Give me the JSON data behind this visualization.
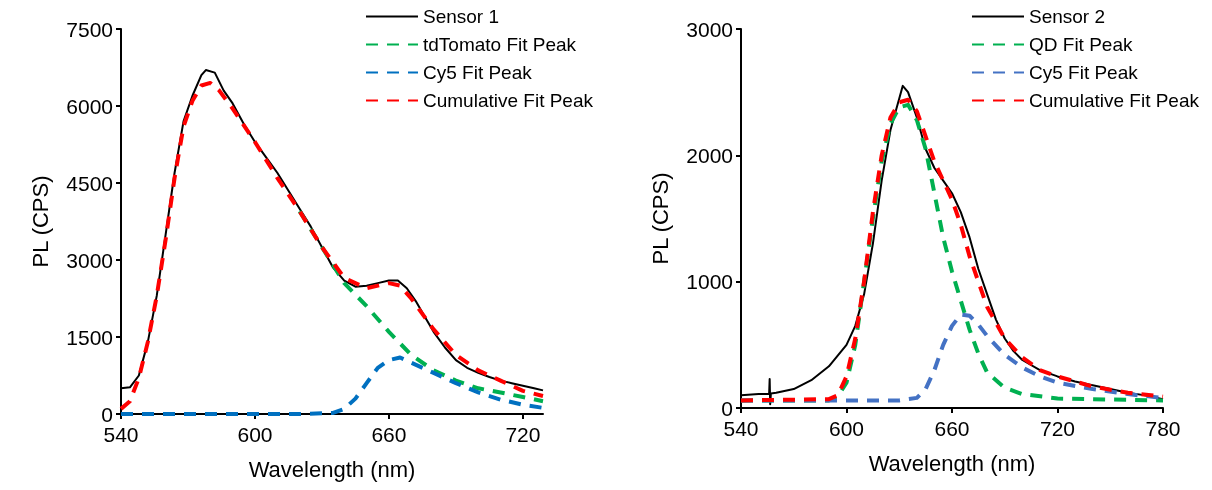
{
  "chart_data": [
    {
      "type": "line",
      "xlabel": "Wavelength (nm)",
      "ylabel": "PL (CPS)",
      "xlim": [
        540,
        729
      ],
      "xticks": [
        540,
        600,
        660,
        720
      ],
      "ylim": [
        0,
        7500
      ],
      "yticks": [
        0,
        1500,
        3000,
        4500,
        6000,
        7500
      ],
      "grid": false,
      "legend": "top right",
      "marker": "none",
      "series": [
        {
          "name": "Sensor 1",
          "color": "#000000",
          "line_style": "solid",
          "x": [
            540,
            544,
            548,
            552,
            556,
            560,
            564,
            568,
            572,
            576,
            578,
            582,
            586,
            590,
            595,
            600,
            605,
            610,
            615,
            620,
            625,
            630,
            635,
            640,
            645,
            650,
            655,
            660,
            664,
            668,
            672,
            676,
            680,
            685,
            690,
            695,
            700,
            705,
            710,
            715,
            720,
            725,
            729
          ],
          "values": [
            500,
            520,
            750,
            1400,
            2300,
            3500,
            4700,
            5700,
            6200,
            6600,
            6700,
            6650,
            6300,
            6050,
            5650,
            5300,
            5000,
            4700,
            4350,
            4000,
            3650,
            3250,
            2850,
            2600,
            2480,
            2500,
            2550,
            2600,
            2600,
            2450,
            2200,
            1900,
            1600,
            1300,
            1050,
            900,
            800,
            720,
            650,
            600,
            550,
            500,
            460
          ]
        },
        {
          "name": "tdTomato Fit Peak",
          "color": "#00b050",
          "line_style": "dashed",
          "x": [
            620,
            630,
            640,
            650,
            660,
            670,
            680,
            690,
            700,
            710,
            720,
            729
          ],
          "values": [
            3950,
            3250,
            2550,
            2100,
            1600,
            1150,
            850,
            650,
            500,
            420,
            330,
            250
          ]
        },
        {
          "name": "Cy5 Fit Peak",
          "color": "#0070c0",
          "line_style": "dashed",
          "x": [
            540,
            620,
            635,
            640,
            645,
            650,
            655,
            660,
            665,
            670,
            680,
            690,
            700,
            710,
            720,
            729
          ],
          "values": [
            0,
            0,
            20,
            100,
            300,
            600,
            900,
            1050,
            1100,
            1000,
            800,
            600,
            420,
            280,
            180,
            120
          ]
        },
        {
          "name": "Cumulative Fit Peak",
          "color": "#ff0000",
          "line_style": "dashed",
          "x": [
            540,
            544,
            548,
            552,
            556,
            560,
            564,
            568,
            572,
            576,
            580,
            584,
            590,
            600,
            610,
            620,
            630,
            640,
            650,
            660,
            665,
            670,
            680,
            690,
            700,
            710,
            720,
            729
          ],
          "values": [
            100,
            250,
            700,
            1400,
            2300,
            3400,
            4600,
            5600,
            6100,
            6400,
            6450,
            6300,
            5950,
            5300,
            4600,
            3950,
            3250,
            2650,
            2450,
            2550,
            2500,
            2250,
            1650,
            1150,
            850,
            650,
            450,
            350
          ]
        }
      ]
    },
    {
      "type": "line",
      "xlabel": "Wavelength (nm)",
      "ylabel": "PL (CPS)",
      "xlim": [
        540,
        780
      ],
      "xticks": [
        540,
        600,
        660,
        720,
        780
      ],
      "ylim": [
        0,
        3000
      ],
      "yticks": [
        0,
        1000,
        2000,
        3000
      ],
      "grid": false,
      "legend": "top right",
      "marker": "none",
      "series": [
        {
          "name": "Sensor 2",
          "color": "#000000",
          "line_style": "solid",
          "x": [
            540,
            550,
            556,
            556.3,
            556.6,
            557,
            560,
            570,
            580,
            590,
            600,
            605,
            610,
            615,
            620,
            625,
            630,
            632,
            635,
            640,
            645,
            650,
            655,
            660,
            665,
            670,
            675,
            680,
            685,
            690,
            695,
            700,
            710,
            720,
            730,
            740,
            750,
            760,
            770,
            780
          ],
          "values": [
            100,
            110,
            110,
            230,
            30,
            115,
            120,
            150,
            220,
            330,
            500,
            650,
            900,
            1300,
            1800,
            2200,
            2450,
            2550,
            2500,
            2300,
            2050,
            1900,
            1800,
            1700,
            1550,
            1350,
            1100,
            900,
            700,
            550,
            450,
            380,
            300,
            250,
            210,
            180,
            150,
            120,
            100,
            70
          ]
        },
        {
          "name": "QD Fit Peak",
          "color": "#00b050",
          "line_style": "dashed",
          "x": [
            540,
            590,
            595,
            600,
            605,
            610,
            615,
            620,
            625,
            630,
            635,
            640,
            645,
            650,
            655,
            660,
            665,
            670,
            675,
            680,
            690,
            700,
            720,
            780
          ],
          "values": [
            60,
            60,
            90,
            200,
            500,
            1000,
            1500,
            1950,
            2250,
            2380,
            2400,
            2280,
            2050,
            1700,
            1350,
            1080,
            850,
            620,
            430,
            280,
            160,
            110,
            75,
            60
          ]
        },
        {
          "name": "Cy5 Fit Peak",
          "color": "#4472c4",
          "line_style": "dashed",
          "x": [
            540,
            630,
            640,
            645,
            650,
            655,
            660,
            665,
            670,
            675,
            680,
            690,
            700,
            710,
            720,
            740,
            760,
            780
          ],
          "values": [
            60,
            60,
            80,
            150,
            300,
            500,
            650,
            740,
            730,
            660,
            570,
            420,
            320,
            250,
            200,
            150,
            110,
            80
          ]
        },
        {
          "name": "Cumulative Fit Peak",
          "color": "#ff0000",
          "line_style": "dashed",
          "x": [
            540,
            590,
            595,
            600,
            605,
            610,
            615,
            620,
            625,
            630,
            635,
            640,
            645,
            650,
            655,
            660,
            665,
            670,
            675,
            680,
            690,
            700,
            710,
            720,
            740,
            760,
            780
          ],
          "values": [
            60,
            70,
            100,
            250,
            550,
            1000,
            1550,
            2000,
            2300,
            2420,
            2440,
            2350,
            2150,
            1950,
            1800,
            1650,
            1450,
            1200,
            1000,
            800,
            550,
            400,
            300,
            250,
            170,
            120,
            90
          ]
        }
      ]
    }
  ]
}
